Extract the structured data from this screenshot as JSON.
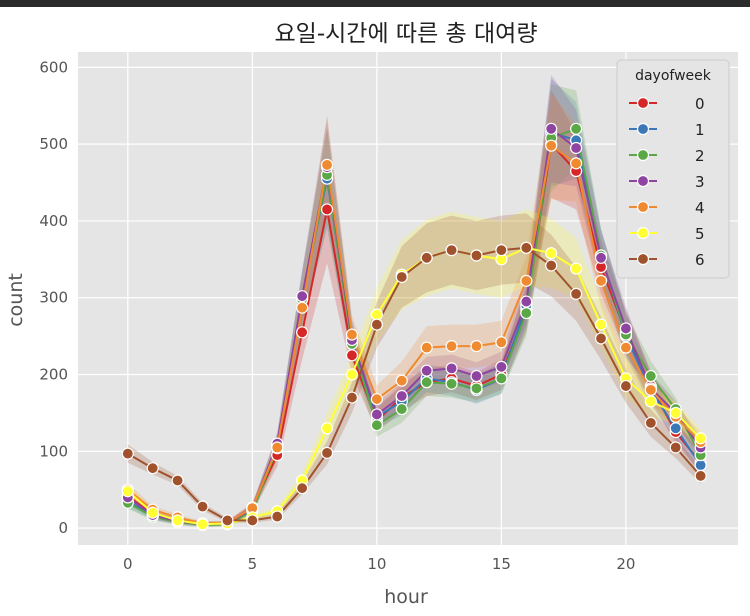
{
  "chart_data": {
    "type": "line",
    "title": "요일-시간에 따른 총 대여량",
    "xlabel": "hour",
    "ylabel": "count",
    "xlim": [
      -2,
      24.5
    ],
    "ylim": [
      -22,
      620
    ],
    "xticks": [
      0,
      5,
      10,
      15,
      20
    ],
    "yticks": [
      0,
      100,
      200,
      300,
      400,
      500,
      600
    ],
    "grid": true,
    "legend": {
      "title": "dayofweek",
      "placement": "top-right"
    },
    "x": [
      0,
      1,
      2,
      3,
      4,
      5,
      6,
      7,
      8,
      9,
      10,
      11,
      12,
      13,
      14,
      15,
      16,
      17,
      18,
      19,
      20,
      21,
      22,
      23
    ],
    "series": [
      {
        "name": "0",
        "color": "#d62728",
        "values": [
          42,
          18,
          10,
          6,
          6,
          27,
          95,
          255,
          415,
          225,
          140,
          170,
          190,
          195,
          185,
          200,
          285,
          500,
          465,
          340,
          255,
          185,
          125,
          85
        ],
        "spread": [
          8,
          5,
          4,
          3,
          3,
          6,
          15,
          35,
          70,
          25,
          15,
          18,
          18,
          18,
          18,
          20,
          30,
          70,
          50,
          35,
          28,
          20,
          15,
          12
        ]
      },
      {
        "name": "1",
        "color": "#3a78b8",
        "values": [
          35,
          16,
          9,
          5,
          6,
          24,
          108,
          300,
          455,
          245,
          145,
          165,
          195,
          190,
          180,
          195,
          290,
          515,
          505,
          355,
          250,
          180,
          130,
          82
        ],
        "spread": [
          8,
          5,
          4,
          3,
          3,
          6,
          15,
          35,
          65,
          25,
          15,
          18,
          18,
          18,
          18,
          20,
          30,
          70,
          50,
          35,
          28,
          20,
          15,
          12
        ]
      },
      {
        "name": "2",
        "color": "#5aa845",
        "values": [
          33,
          15,
          8,
          4,
          5,
          22,
          104,
          298,
          460,
          240,
          134,
          155,
          190,
          188,
          182,
          195,
          280,
          508,
          520,
          355,
          252,
          198,
          155,
          95
        ],
        "spread": [
          8,
          5,
          4,
          3,
          3,
          6,
          15,
          35,
          65,
          25,
          15,
          18,
          18,
          18,
          18,
          20,
          30,
          70,
          50,
          35,
          28,
          20,
          15,
          12
        ]
      },
      {
        "name": "3",
        "color": "#8e44a0",
        "values": [
          40,
          17,
          9,
          5,
          6,
          25,
          110,
          302,
          470,
          245,
          148,
          172,
          205,
          208,
          198,
          210,
          295,
          520,
          495,
          352,
          260,
          182,
          150,
          105
        ],
        "spread": [
          8,
          5,
          4,
          3,
          3,
          6,
          15,
          35,
          65,
          25,
          15,
          18,
          18,
          18,
          18,
          20,
          30,
          70,
          50,
          35,
          28,
          20,
          15,
          12
        ]
      },
      {
        "name": "4",
        "color": "#f08a30",
        "values": [
          50,
          24,
          14,
          6,
          7,
          26,
          105,
          287,
          473,
          252,
          168,
          192,
          235,
          237,
          237,
          242,
          322,
          498,
          475,
          322,
          235,
          180,
          145,
          112
        ],
        "spread": [
          8,
          5,
          4,
          3,
          3,
          6,
          15,
          35,
          65,
          25,
          18,
          25,
          28,
          28,
          28,
          28,
          32,
          70,
          50,
          35,
          28,
          20,
          15,
          12
        ]
      },
      {
        "name": "5",
        "color": "#ffff33",
        "values": [
          48,
          20,
          10,
          5,
          6,
          14,
          22,
          62,
          130,
          200,
          278,
          330,
          352,
          362,
          355,
          350,
          365,
          358,
          338,
          265,
          195,
          165,
          150,
          117
        ],
        "spread": [
          8,
          5,
          4,
          3,
          3,
          4,
          5,
          10,
          20,
          25,
          35,
          45,
          50,
          50,
          50,
          50,
          50,
          45,
          40,
          30,
          25,
          20,
          15,
          12
        ]
      },
      {
        "name": "6",
        "color": "#a0522d",
        "values": [
          97,
          78,
          62,
          28,
          10,
          10,
          15,
          52,
          98,
          170,
          265,
          327,
          352,
          362,
          355,
          362,
          365,
          342,
          305,
          247,
          185,
          137,
          105,
          68
        ],
        "spread": [
          12,
          8,
          6,
          5,
          3,
          3,
          4,
          8,
          15,
          20,
          30,
          40,
          45,
          45,
          45,
          45,
          45,
          40,
          35,
          28,
          22,
          18,
          14,
          10
        ]
      }
    ]
  }
}
